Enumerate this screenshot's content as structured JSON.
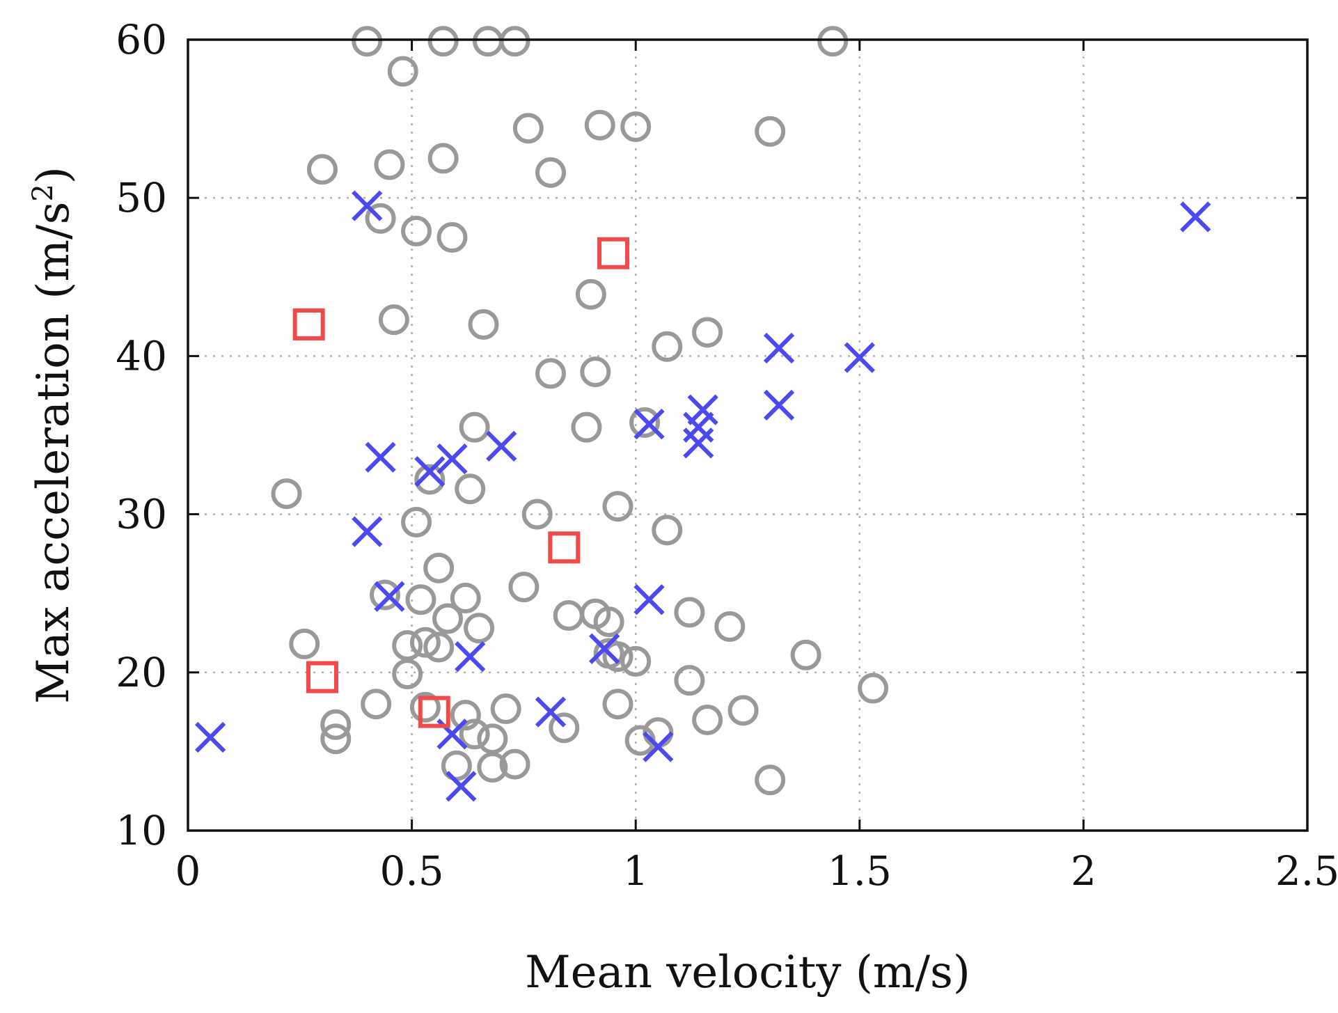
{
  "chart_data": {
    "type": "scatter",
    "title": "",
    "xlabel": "Mean velocity (m/s)",
    "ylabel": "Max acceleration (m/s²)",
    "ylabel_parts": {
      "prefix": "Max acceleration (m/s",
      "sup": "2",
      "suffix": ")"
    },
    "xlim": [
      0,
      2.5
    ],
    "ylim": [
      10,
      60
    ],
    "xticks": [
      0,
      0.5,
      1,
      1.5,
      2,
      2.5
    ],
    "xtick_labels": [
      "0",
      "0.5",
      "1",
      "1.5",
      "2",
      "2.5"
    ],
    "yticks": [
      10,
      20,
      30,
      40,
      50,
      60
    ],
    "ytick_labels": [
      "10",
      "20",
      "30",
      "40",
      "50",
      "60"
    ],
    "grid": true,
    "legend": null,
    "series": [
      {
        "name": "gray circles",
        "marker": "circle",
        "color": "#999999",
        "points": [
          [
            0.4,
            59.9
          ],
          [
            0.57,
            59.9
          ],
          [
            0.67,
            59.9
          ],
          [
            0.73,
            59.9
          ],
          [
            1.44,
            59.9
          ],
          [
            0.48,
            58.0
          ],
          [
            0.92,
            54.6
          ],
          [
            1.0,
            54.5
          ],
          [
            0.76,
            54.4
          ],
          [
            1.3,
            54.2
          ],
          [
            0.57,
            52.5
          ],
          [
            0.45,
            52.1
          ],
          [
            0.3,
            51.8
          ],
          [
            0.81,
            51.6
          ],
          [
            0.43,
            48.7
          ],
          [
            0.51,
            47.9
          ],
          [
            0.59,
            47.5
          ],
          [
            0.9,
            43.9
          ],
          [
            0.46,
            42.3
          ],
          [
            0.66,
            42.0
          ],
          [
            1.16,
            41.5
          ],
          [
            1.07,
            40.6
          ],
          [
            0.81,
            38.9
          ],
          [
            0.91,
            39.0
          ],
          [
            1.02,
            35.8
          ],
          [
            0.64,
            35.5
          ],
          [
            0.89,
            35.5
          ],
          [
            0.54,
            32.2
          ],
          [
            0.63,
            31.6
          ],
          [
            0.22,
            31.3
          ],
          [
            0.96,
            30.5
          ],
          [
            0.78,
            30.0
          ],
          [
            0.51,
            29.5
          ],
          [
            1.07,
            29.0
          ],
          [
            0.56,
            26.6
          ],
          [
            0.75,
            25.4
          ],
          [
            0.44,
            24.9
          ],
          [
            0.52,
            24.6
          ],
          [
            0.62,
            24.7
          ],
          [
            0.58,
            23.4
          ],
          [
            0.65,
            22.8
          ],
          [
            0.85,
            23.6
          ],
          [
            0.91,
            23.7
          ],
          [
            0.94,
            23.2
          ],
          [
            1.12,
            23.8
          ],
          [
            1.21,
            22.9
          ],
          [
            0.26,
            21.8
          ],
          [
            0.49,
            21.7
          ],
          [
            0.53,
            21.9
          ],
          [
            0.56,
            21.6
          ],
          [
            0.94,
            21.2
          ],
          [
            0.96,
            21.0
          ],
          [
            1.0,
            20.7
          ],
          [
            1.38,
            21.1
          ],
          [
            0.49,
            19.9
          ],
          [
            1.12,
            19.5
          ],
          [
            1.53,
            19.0
          ],
          [
            0.42,
            18.0
          ],
          [
            0.53,
            17.8
          ],
          [
            0.71,
            17.7
          ],
          [
            0.96,
            18.0
          ],
          [
            0.62,
            17.3
          ],
          [
            1.16,
            17.0
          ],
          [
            1.24,
            17.6
          ],
          [
            0.33,
            16.7
          ],
          [
            0.33,
            15.8
          ],
          [
            0.64,
            16.1
          ],
          [
            0.68,
            15.8
          ],
          [
            0.84,
            16.5
          ],
          [
            1.01,
            15.7
          ],
          [
            1.05,
            16.2
          ],
          [
            0.6,
            14.1
          ],
          [
            0.68,
            14.0
          ],
          [
            0.73,
            14.2
          ],
          [
            1.3,
            13.2
          ]
        ]
      },
      {
        "name": "blue crosses",
        "marker": "x",
        "color": "#4a4af0",
        "points": [
          [
            0.05,
            15.9
          ],
          [
            0.4,
            49.5
          ],
          [
            0.4,
            28.9
          ],
          [
            0.43,
            33.6
          ],
          [
            0.45,
            24.8
          ],
          [
            0.54,
            32.7
          ],
          [
            0.59,
            33.5
          ],
          [
            0.7,
            34.3
          ],
          [
            0.63,
            21.0
          ],
          [
            0.59,
            16.1
          ],
          [
            0.61,
            12.8
          ],
          [
            0.81,
            17.5
          ],
          [
            0.93,
            21.5
          ],
          [
            1.03,
            35.7
          ],
          [
            1.03,
            24.6
          ],
          [
            1.05,
            15.3
          ],
          [
            1.15,
            36.6
          ],
          [
            1.14,
            35.5
          ],
          [
            1.14,
            34.5
          ],
          [
            1.32,
            40.5
          ],
          [
            1.32,
            36.9
          ],
          [
            1.5,
            39.9
          ],
          [
            2.25,
            48.8
          ]
        ]
      },
      {
        "name": "red squares",
        "marker": "square",
        "color": "#f04a4a",
        "points": [
          [
            0.27,
            42.0
          ],
          [
            0.3,
            19.7
          ],
          [
            0.55,
            17.5
          ],
          [
            0.84,
            27.9
          ],
          [
            0.95,
            46.5
          ]
        ]
      }
    ]
  }
}
